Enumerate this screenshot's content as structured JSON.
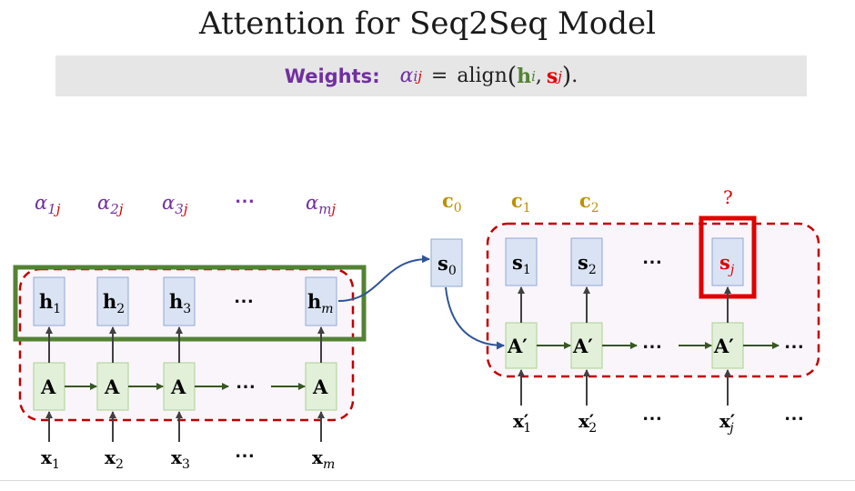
{
  "title": "Attention for Seq2Seq Model",
  "formula": {
    "label": "Weights",
    "colon": ":",
    "alpha": "α",
    "alpha_sub_i": "i",
    "alpha_sub_j": "j",
    "equals": "=",
    "func": "align",
    "h": "h",
    "h_sub": "i",
    "comma": ",",
    "s": "s",
    "s_sub": "j",
    "end": "."
  },
  "encoder": {
    "weights": [
      {
        "sym": "α",
        "i": "1",
        "j": "j"
      },
      {
        "sym": "α",
        "i": "2",
        "j": "j"
      },
      {
        "sym": "α",
        "i": "3",
        "j": "j"
      },
      {
        "sym": "α",
        "i": "m",
        "j": "j"
      }
    ],
    "weights_ellipsis": "⋯",
    "hidden": [
      {
        "sym": "h",
        "sub": "1"
      },
      {
        "sym": "h",
        "sub": "2"
      },
      {
        "sym": "h",
        "sub": "3"
      },
      {
        "sym": "h",
        "sub": "m"
      }
    ],
    "rnn_label": "A",
    "inputs": [
      {
        "sym": "x",
        "sub": "1"
      },
      {
        "sym": "x",
        "sub": "2"
      },
      {
        "sym": "x",
        "sub": "3"
      },
      {
        "sym": "x",
        "sub": "m"
      }
    ],
    "ellipsis": "⋯"
  },
  "decoder": {
    "contexts": [
      {
        "sym": "c",
        "sub": "0"
      },
      {
        "sym": "c",
        "sub": "1"
      },
      {
        "sym": "c",
        "sub": "2"
      }
    ],
    "unknown": "?",
    "states": [
      {
        "sym": "s",
        "sub": "0"
      },
      {
        "sym": "s",
        "sub": "1"
      },
      {
        "sym": "s",
        "sub": "2"
      },
      {
        "sym": "s",
        "sub": "j"
      }
    ],
    "rnn_label": "A′",
    "inputs": [
      {
        "sym": "x′",
        "sub": "1"
      },
      {
        "sym": "x′",
        "sub": "2"
      },
      {
        "sym": "x′",
        "sub": "j"
      }
    ],
    "ellipsis": "⋯"
  },
  "colors": {
    "purple": "#7030a0",
    "gold": "#bf9000",
    "red": "#e00000",
    "green_border": "#548235",
    "dashed_red": "#c00000",
    "blue_node": "#dae3f3",
    "green_node": "#e2f0d9",
    "arrow": "#2f5597"
  }
}
